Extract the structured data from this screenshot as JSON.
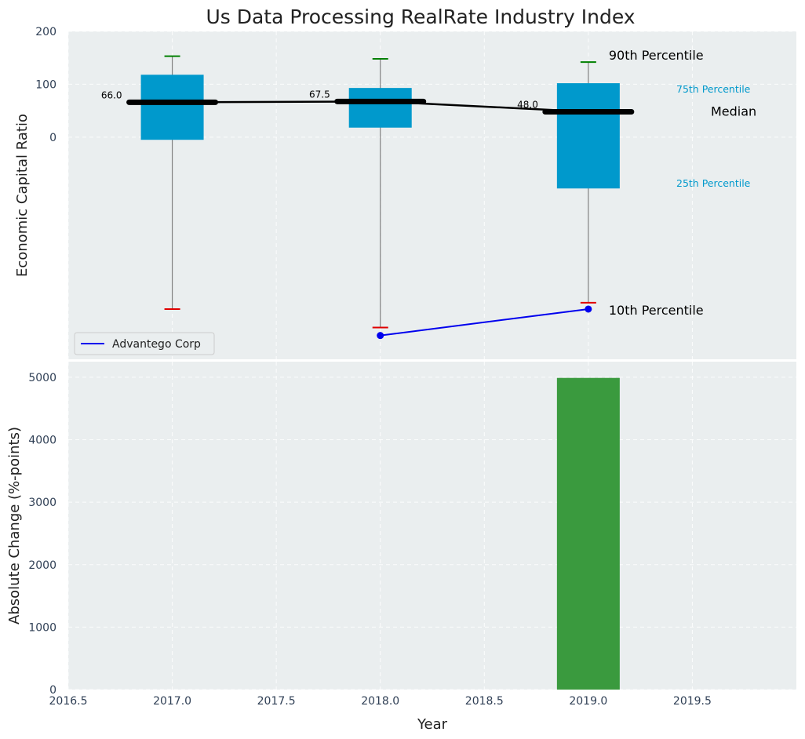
{
  "colors": {
    "panel_bg": "#eaeeef",
    "box": "#0099cc",
    "median": "#000000",
    "whisker_line": "#808080",
    "p90_cap": "#008000",
    "p10_cap": "#e00000",
    "company": "#0000ee",
    "bar": "#3a9a3e",
    "label_small": "#0099cc"
  },
  "chart_data": [
    {
      "type": "box",
      "title": "Us Data Processing RealRate Industry Index",
      "ylabel": "Economic Capital Ratio",
      "xlim": [
        2016.5,
        2020.0
      ],
      "ylim": [
        -420,
        200
      ],
      "y_ticks": [
        0,
        100,
        200
      ],
      "grid": true,
      "legend_position": "lower-left",
      "boxes": [
        {
          "x": 2017.0,
          "p10": -325,
          "p25": -5,
          "median": 66.0,
          "p75": 118,
          "p90": 153,
          "median_label": "66.0"
        },
        {
          "x": 2018.0,
          "p10": -360,
          "p25": 18,
          "median": 67.5,
          "p75": 93,
          "p90": 148,
          "median_label": "67.5"
        },
        {
          "x": 2019.0,
          "p10": -313,
          "p25": -97,
          "median": 48.0,
          "p75": 102,
          "p90": 142,
          "median_label": "48.0"
        }
      ],
      "median_series": {
        "x": [
          2017.0,
          2018.0,
          2019.0
        ],
        "values": [
          66.0,
          67.5,
          48.0
        ]
      },
      "series": [
        {
          "name": "Advantego Corp",
          "x": [
            2018.0,
            2019.0
          ],
          "values": [
            -375,
            -325
          ]
        }
      ],
      "annotations": {
        "p90": "90th Percentile",
        "p75": "75th Percentile",
        "median": "Median",
        "p25": "25th Percentile",
        "p10": "10th Percentile"
      }
    },
    {
      "type": "bar",
      "xlabel": "Year",
      "ylabel": "Absolute Change (%-points)",
      "xlim": [
        2016.5,
        2020.0
      ],
      "ylim": [
        0,
        5250
      ],
      "x": [
        2019.0
      ],
      "values": [
        4990
      ],
      "x_ticks": [
        "2016.5",
        "2017.0",
        "2017.5",
        "2018.0",
        "2018.5",
        "2019.0",
        "2019.5"
      ],
      "y_ticks": [
        "0",
        "1000",
        "2000",
        "3000",
        "4000",
        "5000"
      ],
      "grid": true
    }
  ]
}
